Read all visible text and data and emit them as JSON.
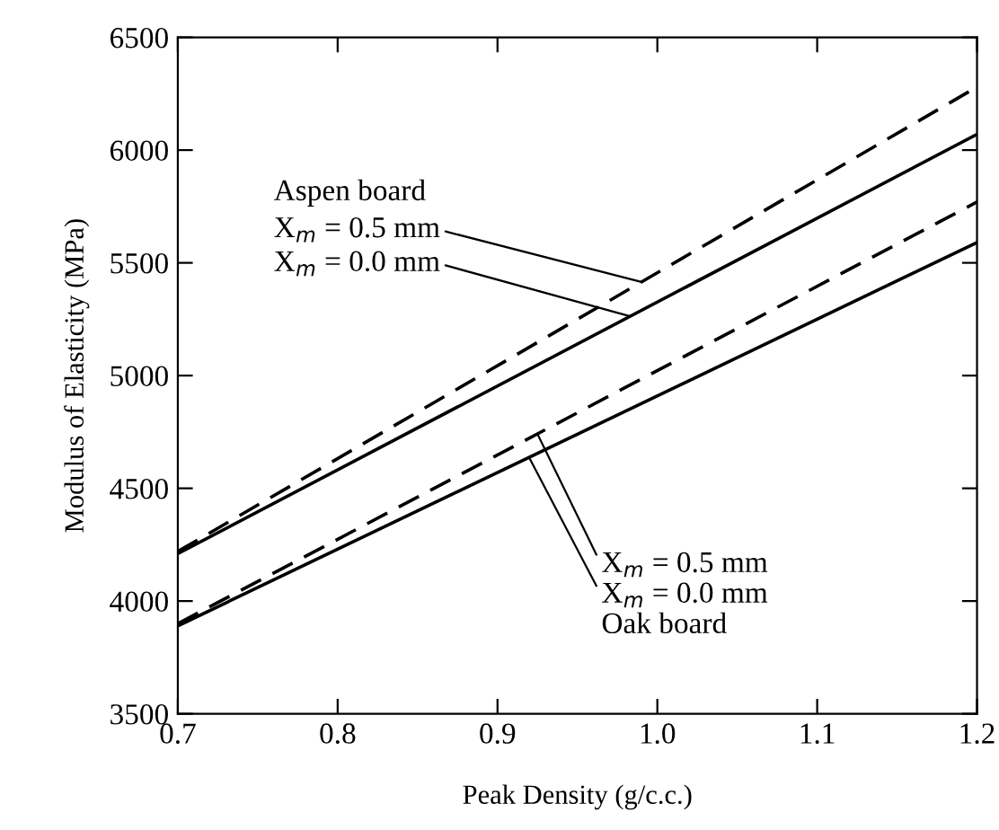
{
  "chart_data": {
    "type": "line",
    "xlabel": "Peak Density (g/c.c.)",
    "ylabel": "Modulus of Elasticity (MPa)",
    "x": [
      0.7,
      1.2
    ],
    "series": [
      {
        "color": "#000000",
        "values": [
          4220,
          6280
        ],
        "line_style": "dashed"
      },
      {
        "color": "#000000",
        "values": [
          4210,
          6070
        ],
        "line_style": "solid"
      },
      {
        "color": "#000000",
        "values": [
          3900,
          5770
        ],
        "line_style": "dashed"
      },
      {
        "color": "#000000",
        "values": [
          3890,
          5590
        ],
        "line_style": "solid"
      }
    ],
    "xlim": [
      0.7,
      1.2
    ],
    "xticks": [
      {
        "value": 0.7,
        "label": "0.7"
      },
      {
        "value": 0.8,
        "label": "0.8"
      },
      {
        "value": 0.9,
        "label": "0.9"
      },
      {
        "value": 1.0,
        "label": "1.0"
      },
      {
        "value": 1.1,
        "label": "1.1"
      },
      {
        "value": 1.2,
        "label": "1.2"
      }
    ],
    "ylim": [
      3500,
      6500
    ],
    "yticks": [
      3500,
      4000,
      4500,
      5000,
      5500,
      6000,
      6500
    ],
    "grid": false,
    "legend": false,
    "marker": "none",
    "annotations": [
      "Aspen board",
      {
        "text": "X$_{m}$ = 0.5 mm",
        "x": 0.99,
        "y": 5415
      },
      {
        "text": "X$_{m}$ = 0.0 mm",
        "x": 0.983,
        "y": 5263
      },
      {
        "text": "X$_{m}$ = 0.5 mm",
        "x": 0.925,
        "y": 4741
      },
      {
        "text": "X$_{m}$ = 0.0 mm",
        "x": 0.92,
        "y": 4634
      },
      "Oak board"
    ]
  }
}
